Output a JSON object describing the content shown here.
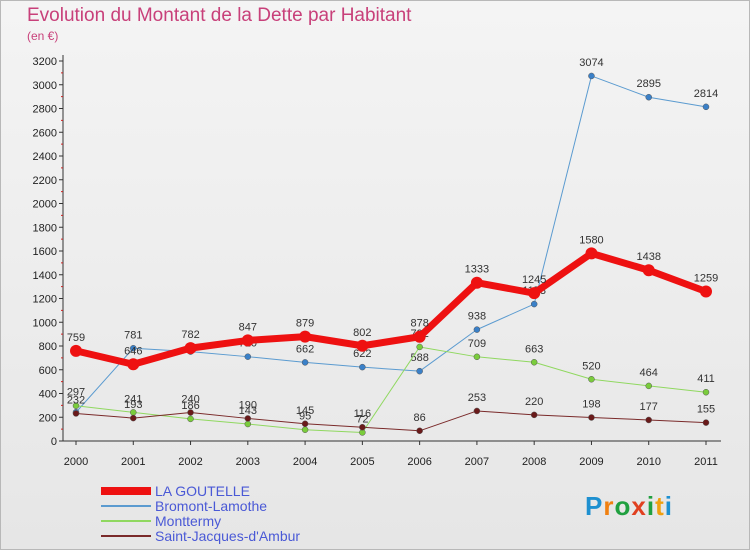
{
  "title": "Evolution du Montant de la Dette par Habitant",
  "subtitle": "(en €)",
  "logo": {
    "letters": [
      "P",
      "r",
      "o",
      "x",
      "i",
      "t",
      "i"
    ],
    "colors": [
      "#1e90d0",
      "#f08010",
      "#20a040",
      "#e04020",
      "#20a040",
      "#f0a010",
      "#1e90d0"
    ]
  },
  "chart_data": {
    "type": "line",
    "x": [
      "2000",
      "2001",
      "2002",
      "2003",
      "2004",
      "2005",
      "2006",
      "2007",
      "2008",
      "2009",
      "2010",
      "2011"
    ],
    "ylim": [
      0,
      3200
    ],
    "yticks": [
      0,
      200,
      400,
      600,
      800,
      1000,
      1200,
      1400,
      1600,
      1800,
      2000,
      2200,
      2400,
      2600,
      2800,
      3000,
      3200
    ],
    "grid": false,
    "legend": "bottom-left",
    "series": [
      {
        "name": "Bromont-Lamothe",
        "color": "#5b9bd0",
        "marker": "#3a80c8",
        "width": 1,
        "values": [
          242,
          781,
          753,
          710,
          662,
          622,
          588,
          938,
          1153,
          3074,
          2895,
          2814
        ],
        "labels": [
          "",
          "781",
          "",
          "710",
          "662",
          "622",
          "588",
          "938",
          "1153",
          "3074",
          "2895",
          "2814"
        ]
      },
      {
        "name": "Monttermy",
        "color": "#90d860",
        "marker": "#7acc3c",
        "width": 1,
        "values": [
          297,
          241,
          186,
          143,
          95,
          72,
          792,
          709,
          663,
          520,
          464,
          411
        ],
        "labels": [
          "297",
          "241",
          "186",
          "143",
          "95",
          "72",
          "792",
          "709",
          "663",
          "520",
          "464",
          "411"
        ]
      },
      {
        "name": "Saint-Jacques-d'Ambur",
        "color": "#7a2a2a",
        "marker": "#6a1a1a",
        "width": 1,
        "values": [
          232,
          193,
          240,
          190,
          145,
          116,
          86,
          253,
          220,
          198,
          177,
          155
        ],
        "labels": [
          "232",
          "193",
          "240",
          "190",
          "145",
          "116",
          "86",
          "253",
          "220",
          "198",
          "177",
          "155"
        ]
      },
      {
        "name": "LA GOUTELLE",
        "color": "#ee1111",
        "marker": "#ee1111",
        "width": 7,
        "values": [
          759,
          646,
          782,
          847,
          879,
          802,
          878,
          1333,
          1245,
          1580,
          1438,
          1259
        ],
        "labels": [
          "759",
          "646",
          "782",
          "847",
          "879",
          "802",
          "878",
          "1333",
          "1245",
          "1580",
          "1438",
          "1259"
        ]
      }
    ]
  }
}
